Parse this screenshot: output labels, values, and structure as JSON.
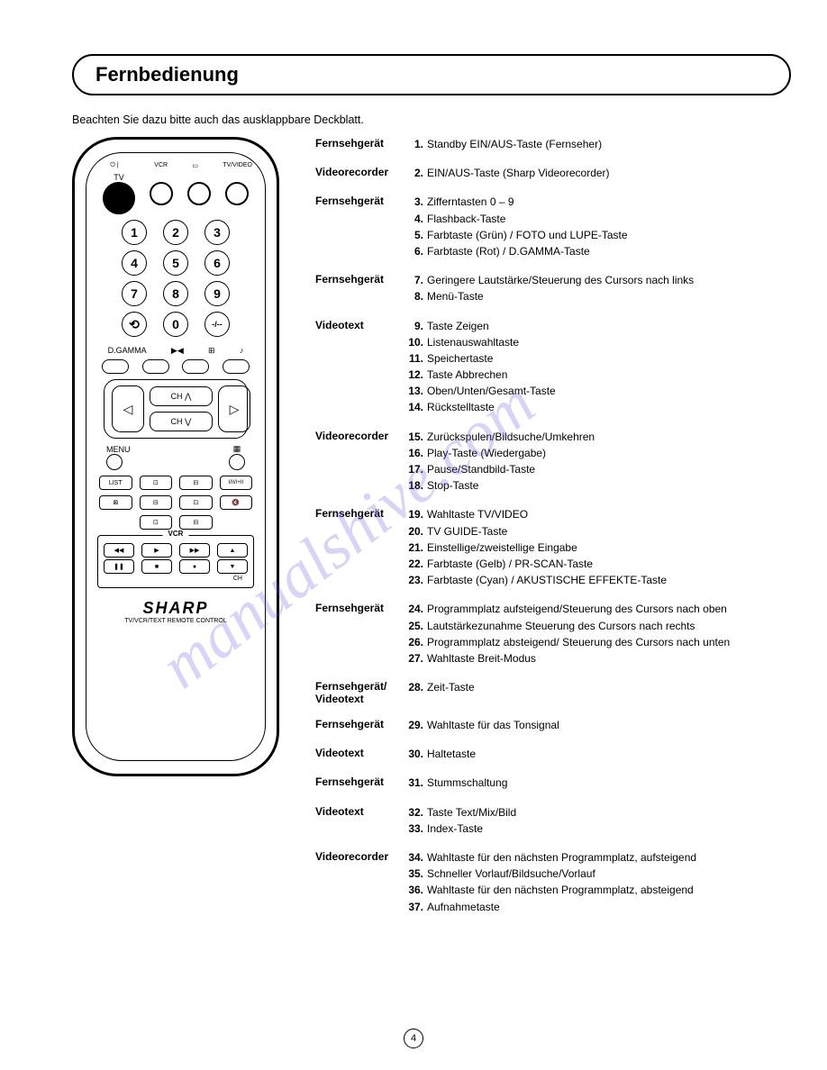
{
  "title": "Fernbedienung",
  "intro": "Beachten Sie dazu bitte auch das ausklappbare Deckblatt.",
  "watermark": "manualshive.com",
  "pageNumber": "4",
  "remote": {
    "brand": "SHARP",
    "brandSub": "TV/VCR/TEXT REMOTE CONTROL",
    "topLabels": {
      "tv": "TV",
      "vcr": "VCR",
      "tvvideo": "TV/VIDEO"
    },
    "numbers": [
      "1",
      "2",
      "3",
      "4",
      "5",
      "6",
      "7",
      "8",
      "9",
      "0"
    ],
    "dgamma": "D.GAMMA",
    "menu": "MENU",
    "list": "LIST",
    "chUp": "CH ⋀",
    "chDown": "CH ⋁",
    "vcrLabel": "VCR",
    "ch": "CH"
  },
  "sections": [
    {
      "label": "Fernsehgerät",
      "items": [
        {
          "n": "1.",
          "t": "Standby EIN/AUS-Taste (Fernseher)"
        }
      ]
    },
    {
      "label": "Videorecorder",
      "items": [
        {
          "n": "2.",
          "t": "EIN/AUS-Taste (Sharp Videorecorder)"
        }
      ]
    },
    {
      "label": "Fernsehgerät",
      "items": [
        {
          "n": "3.",
          "t": "Zifferntasten 0 – 9"
        },
        {
          "n": "4.",
          "t": "Flashback-Taste"
        },
        {
          "n": "5.",
          "t": "Farbtaste (Grün) / FOTO und LUPE-Taste"
        },
        {
          "n": "6.",
          "t": "Farbtaste (Rot) / D.GAMMA-Taste"
        }
      ]
    },
    {
      "label": "Fernsehgerät",
      "items": [
        {
          "n": "7.",
          "t": "Geringere Lautstärke/Steuerung des Cursors nach links"
        },
        {
          "n": "8.",
          "t": "Menü-Taste"
        }
      ]
    },
    {
      "label": "Videotext",
      "items": [
        {
          "n": "9.",
          "t": "Taste Zeigen"
        },
        {
          "n": "10.",
          "t": "Listenauswahltaste"
        },
        {
          "n": "11.",
          "t": "Speichertaste"
        },
        {
          "n": "12.",
          "t": "Taste Abbrechen"
        },
        {
          "n": "13.",
          "t": "Oben/Unten/Gesamt-Taste"
        },
        {
          "n": "14.",
          "t": "Rückstelltaste"
        }
      ]
    },
    {
      "label": "Videorecorder",
      "items": [
        {
          "n": "15.",
          "t": "Zurückspulen/Bildsuche/Umkehren"
        },
        {
          "n": "16.",
          "t": "Play-Taste (Wiedergabe)"
        },
        {
          "n": "17.",
          "t": "Pause/Standbild-Taste"
        },
        {
          "n": "18.",
          "t": "Stop-Taste"
        }
      ]
    },
    {
      "label": "Fernsehgerät",
      "items": [
        {
          "n": "19.",
          "t": "Wahltaste TV/VIDEO"
        },
        {
          "n": "20.",
          "t": "TV GUIDE-Taste"
        },
        {
          "n": "21.",
          "t": "Einstellige/zweistellige Eingabe"
        },
        {
          "n": "22.",
          "t": "Farbtaste (Gelb) / PR-SCAN-Taste"
        },
        {
          "n": "23.",
          "t": "Farbtaste (Cyan) / AKUSTISCHE EFFEKTE-Taste"
        }
      ]
    },
    {
      "label": "Fernsehgerät",
      "items": [
        {
          "n": "24.",
          "t": "Programmplatz aufsteigend/Steuerung des Cursors nach oben"
        },
        {
          "n": "25.",
          "t": "Lautstärkezunahme Steuerung des Cursors nach rechts"
        },
        {
          "n": "26.",
          "t": "Programmplatz absteigend/ Steuerung des Cursors nach unten"
        },
        {
          "n": "27.",
          "t": "Wahltaste Breit-Modus"
        }
      ]
    },
    {
      "label": "Fernsehgerät/ Videotext",
      "items": [
        {
          "n": "28.",
          "t": "Zeit-Taste"
        }
      ]
    },
    {
      "label": "Fernsehgerät",
      "items": [
        {
          "n": "29.",
          "t": "Wahltaste für das Tonsignal"
        }
      ]
    },
    {
      "label": "Videotext",
      "items": [
        {
          "n": "30.",
          "t": "Haltetaste"
        }
      ]
    },
    {
      "label": "Fernsehgerät",
      "items": [
        {
          "n": "31.",
          "t": "Stummschaltung"
        }
      ]
    },
    {
      "label": "Videotext",
      "items": [
        {
          "n": "32.",
          "t": "Taste Text/Mix/Bild"
        },
        {
          "n": "33.",
          "t": "Index-Taste"
        }
      ]
    },
    {
      "label": "Videorecorder",
      "items": [
        {
          "n": "34.",
          "t": "Wahltaste für den nächsten Programmplatz, aufsteigend"
        },
        {
          "n": "35.",
          "t": "Schneller Vorlauf/Bildsuche/Vorlauf"
        },
        {
          "n": "36.",
          "t": "Wahltaste für den nächsten Programmplatz, absteigend"
        },
        {
          "n": "37.",
          "t": "Aufnahmetaste"
        }
      ]
    }
  ]
}
